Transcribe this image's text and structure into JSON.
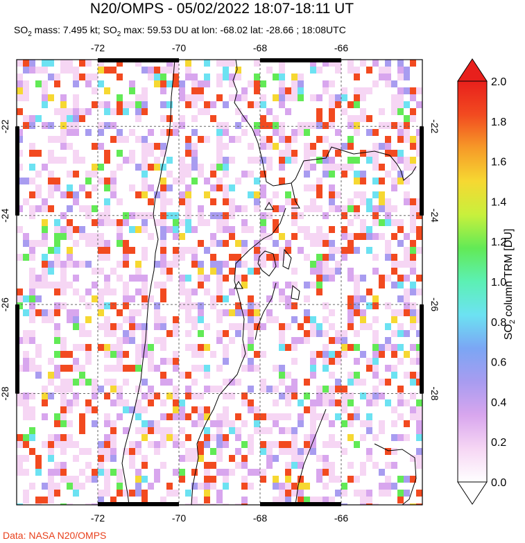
{
  "header": {
    "title": "N20/OMPS - 05/02/2022 18:07-18:11 UT",
    "subtitle_html": "SO<sub>2</sub> mass: 7.495 kt; SO<sub>2</sub> max: 59.53 DU at lon: -68.02 lat: -28.66 ; 18:08UTC"
  },
  "map": {
    "lon_ticks": [
      "-72",
      "-70",
      "-68",
      "-66"
    ],
    "lat_ticks": [
      "-22",
      "-24",
      "-26",
      "-28"
    ],
    "lon_range": [
      -74,
      -64
    ],
    "lat_range": [
      -20.5,
      -30.5
    ]
  },
  "colorbar": {
    "title_html": "SO<sub>2</sub> column TRM [DU]",
    "ticks": [
      "2.0",
      "1.8",
      "1.6",
      "1.4",
      "1.2",
      "1.0",
      "0.8",
      "0.6",
      "0.4",
      "0.2",
      "0.0"
    ],
    "stops": [
      "#ffffff",
      "#f6d6f4",
      "#d8a6ee",
      "#a89cf0",
      "#7ba6f4",
      "#6ce2f2",
      "#5cf0b4",
      "#62ea56",
      "#c8f03c",
      "#f6d832",
      "#f69a28",
      "#f24a20",
      "#e8201c"
    ],
    "over_color": "#e8201c",
    "under_color": "#ffffff"
  },
  "credit": "Data: NASA N20/OMPS"
}
